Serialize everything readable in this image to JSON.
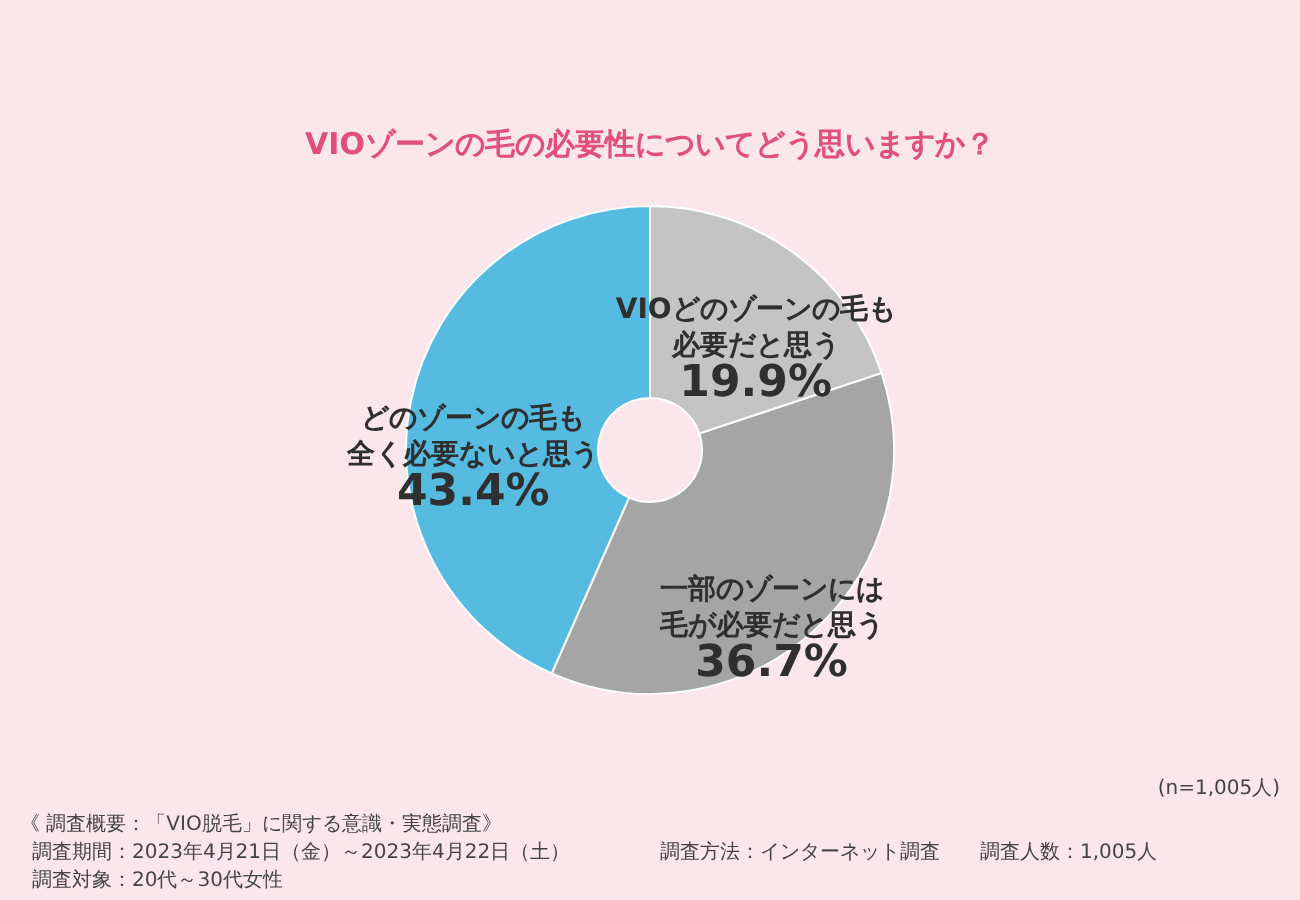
{
  "chart_data": {
    "type": "donut",
    "title": "VIOゾーンの毛の必要性についてどう思いますか？",
    "categories": [
      "VIOどのゾーンの毛も必要だと思う",
      "一部のゾーンには毛が必要だと思う",
      "どのゾーンの毛も全く必要ないと思う"
    ],
    "values": [
      19.9,
      36.7,
      43.4
    ],
    "colors": [
      "#c4c4c4",
      "#a5a5a5",
      "#56bbe0"
    ],
    "value_labels": [
      "19.9%",
      "36.7%",
      "43.4%"
    ],
    "legend": false,
    "annotations": [
      "(n=1,005人)",
      "《 調査概要：「VIO脱毛」に関する意識・実態調査》",
      "調査期間：2023年4月21日（金）～2023年4月22日（土）",
      "調査対象：20代～30代女性",
      "調査方法：インターネット調査",
      "調査人数：1,005人"
    ]
  }
}
